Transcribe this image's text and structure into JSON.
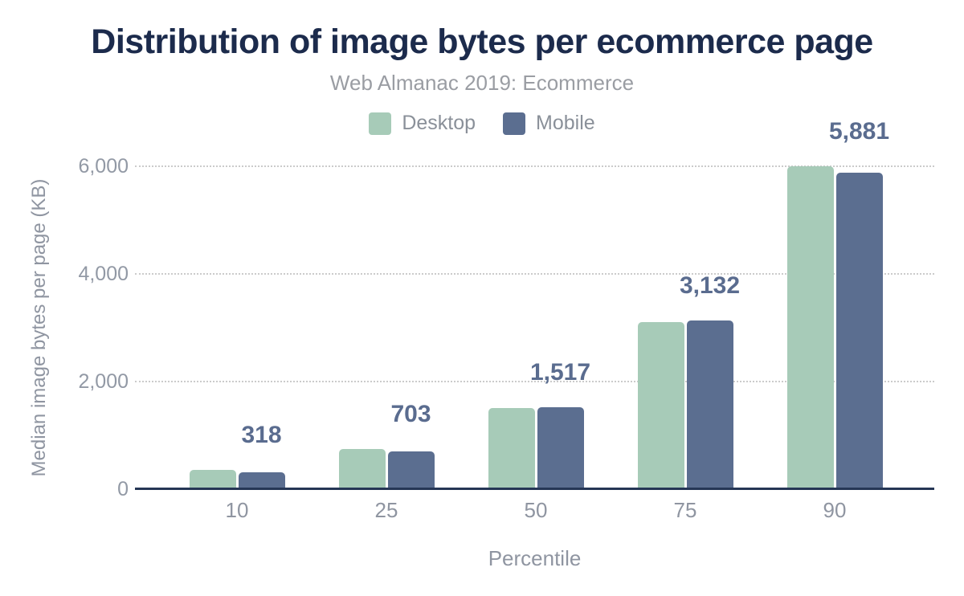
{
  "title": "Distribution of image bytes per ecommerce page",
  "subtitle": "Web Almanac 2019: Ecommerce",
  "legend": {
    "items": [
      {
        "label": "Desktop",
        "color": "#a7cbb8"
      },
      {
        "label": "Mobile",
        "color": "#5b6e90"
      }
    ]
  },
  "colors": {
    "title": "#1c2b4c",
    "subtitle_text": "#9a9da3",
    "axis_line": "#253655",
    "tick_text": "#9299a5",
    "axis_title_text": "#8f95a1",
    "data_label_text": "#5a6c8f",
    "desktop_bar": "#a7cbb8",
    "mobile_bar": "#5b6e90",
    "gridline": "#cbcbcb",
    "background": "#ffffff"
  },
  "chart_data": {
    "type": "bar",
    "title": "Distribution of image bytes per ecommerce page",
    "subtitle": "Web Almanac 2019: Ecommerce",
    "xlabel": "Percentile",
    "ylabel": "Median image bytes per page (KB)",
    "categories": [
      "10",
      "25",
      "50",
      "75",
      "90"
    ],
    "series": [
      {
        "name": "Desktop",
        "color": "#a7cbb8",
        "values": [
          353,
          744,
          1514,
          3104,
          5998
        ]
      },
      {
        "name": "Mobile",
        "color": "#5b6e90",
        "values": [
          318,
          703,
          1517,
          3132,
          5881
        ]
      }
    ],
    "data_labels": [
      "318",
      "703",
      "1,517",
      "3,132",
      "5,881"
    ],
    "data_labels_for_series": "Mobile",
    "yticks": [
      0,
      2000,
      4000,
      6000
    ],
    "ytick_labels": [
      "0",
      "2,000",
      "4,000",
      "6,000"
    ],
    "ylim": [
      0,
      6000
    ],
    "grid": "horizontal-dotted",
    "legend_position": "top-center"
  }
}
